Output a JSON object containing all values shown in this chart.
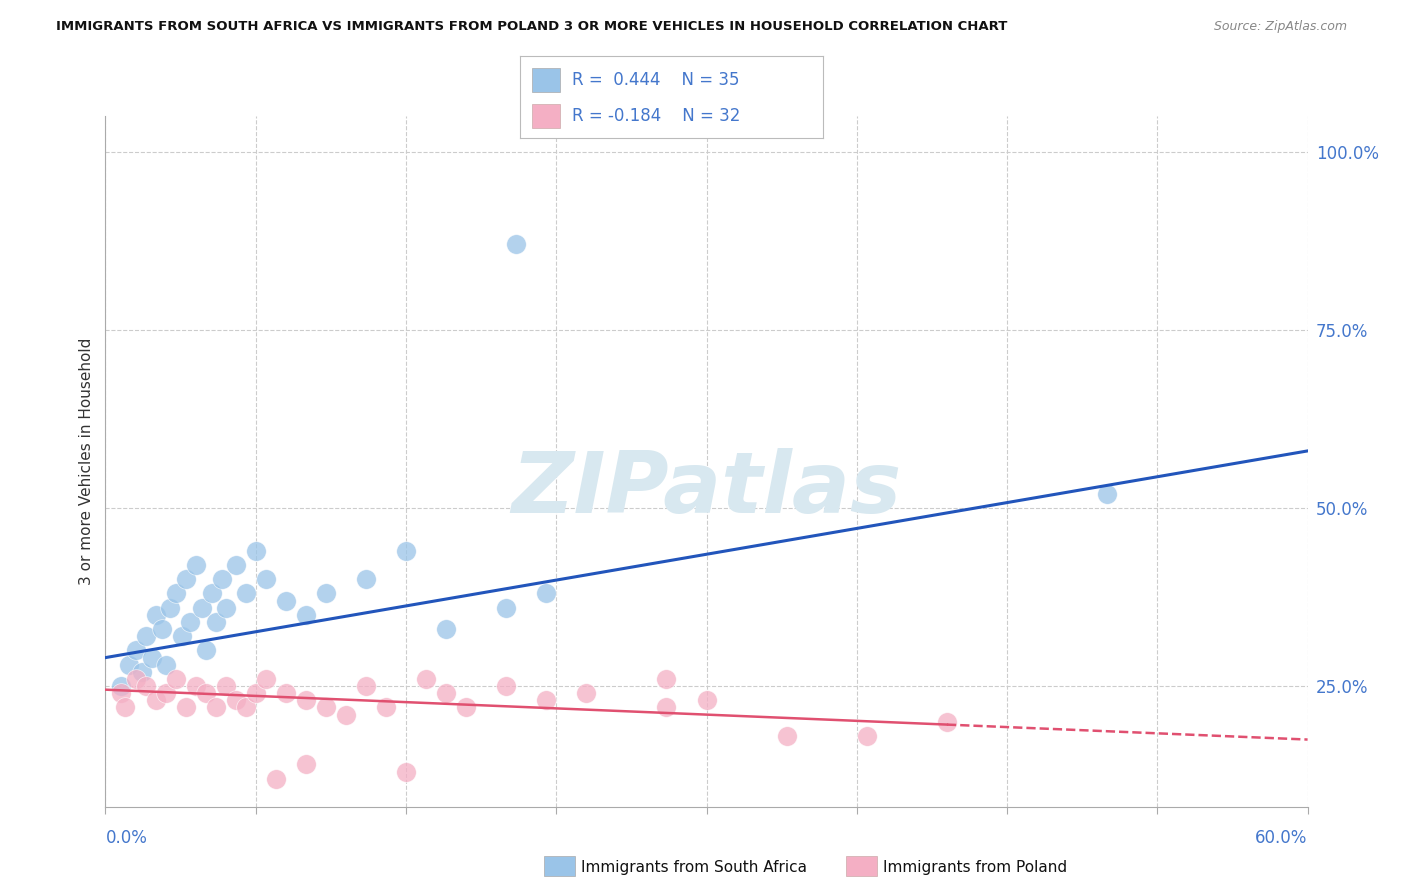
{
  "title": "IMMIGRANTS FROM SOUTH AFRICA VS IMMIGRANTS FROM POLAND 3 OR MORE VEHICLES IN HOUSEHOLD CORRELATION CHART",
  "source": "Source: ZipAtlas.com",
  "ylabel": "3 or more Vehicles in Household",
  "xmin": 0.0,
  "xmax": 60.0,
  "ymin": 8.0,
  "ymax": 105.0,
  "yticks": [
    25.0,
    50.0,
    75.0,
    100.0
  ],
  "ytick_labels": [
    "25.0%",
    "50.0%",
    "75.0%",
    "100.0%"
  ],
  "xtick_left": "0.0%",
  "xtick_right": "60.0%",
  "blue_scatter_color": "#9ac4e8",
  "pink_scatter_color": "#f4afc4",
  "blue_line_color": "#2255bb",
  "pink_line_color": "#e05070",
  "watermark_color": "#d8e8f0",
  "sa_x": [
    0.8,
    1.2,
    1.5,
    1.8,
    2.0,
    2.3,
    2.5,
    2.8,
    3.0,
    3.2,
    3.5,
    3.8,
    4.0,
    4.2,
    4.5,
    4.8,
    5.0,
    5.3,
    5.5,
    5.8,
    6.0,
    6.5,
    7.0,
    7.5,
    8.0,
    9.0,
    10.0,
    11.0,
    13.0,
    15.0,
    20.0,
    22.0,
    50.0,
    20.5,
    17.0
  ],
  "sa_y": [
    25,
    28,
    30,
    27,
    32,
    29,
    35,
    33,
    28,
    36,
    38,
    32,
    40,
    34,
    42,
    36,
    30,
    38,
    34,
    40,
    36,
    42,
    38,
    44,
    40,
    37,
    35,
    38,
    40,
    44,
    36,
    38,
    52,
    87,
    33
  ],
  "pl_x": [
    0.8,
    1.0,
    1.5,
    2.0,
    2.5,
    3.0,
    3.5,
    4.0,
    4.5,
    5.0,
    5.5,
    6.0,
    6.5,
    7.0,
    7.5,
    8.0,
    9.0,
    10.0,
    11.0,
    12.0,
    13.0,
    14.0,
    16.0,
    17.0,
    18.0,
    20.0,
    22.0,
    24.0,
    28.0,
    30.0,
    38.0,
    42.0
  ],
  "pl_y": [
    24,
    22,
    26,
    25,
    23,
    24,
    26,
    22,
    25,
    24,
    22,
    25,
    23,
    22,
    24,
    26,
    24,
    23,
    22,
    21,
    25,
    22,
    26,
    24,
    22,
    25,
    23,
    24,
    22,
    23,
    18,
    20
  ],
  "pl_outlier1_x": 15.0,
  "pl_outlier1_y": 13.0,
  "pl_outlier2_x": 28.0,
  "pl_outlier2_y": 26.0,
  "pl_outlier3_x": 34.0,
  "pl_outlier3_y": 18.0,
  "pl_low1_x": 10.0,
  "pl_low1_y": 14.0,
  "pl_low2_x": 8.5,
  "pl_low2_y": 12.0,
  "sa_line_x0": 0.0,
  "sa_line_y0": 29.0,
  "sa_line_x1": 60.0,
  "sa_line_y1": 58.0,
  "pl_line_x0": 0.0,
  "pl_line_y0": 24.5,
  "pl_line_x1": 60.0,
  "pl_line_y1": 17.5
}
